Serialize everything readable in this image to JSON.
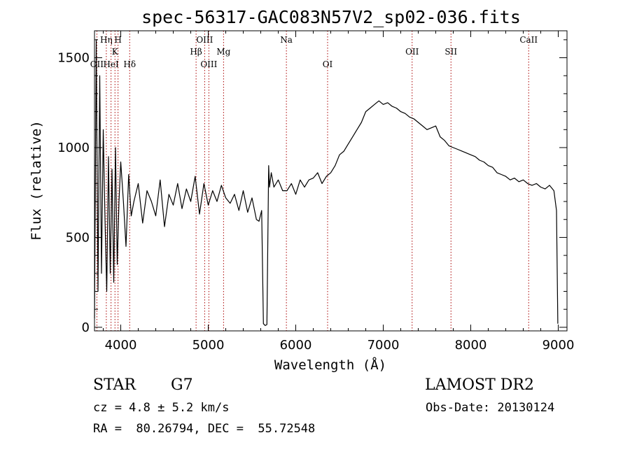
{
  "chart_data": {
    "type": "line",
    "title": "spec-56317-GAC083N57V2_sp02-036.fits",
    "xlabel": "Wavelength (Å)",
    "ylabel": "Flux (relative)",
    "xlim": [
      3700,
      9100
    ],
    "ylim": [
      -20,
      1650
    ],
    "xticks": [
      4000,
      5000,
      6000,
      7000,
      8000,
      9000
    ],
    "yticks": [
      0,
      500,
      1000,
      1500
    ],
    "grid": false,
    "line_color": "#000000",
    "marker_color": "#aa0000",
    "series": [
      {
        "x": [
          3700,
          3720,
          3740,
          3760,
          3780,
          3800,
          3820,
          3840,
          3860,
          3880,
          3900,
          3920,
          3940,
          3960,
          3980,
          4000,
          4030,
          4060,
          4090,
          4120,
          4150,
          4200,
          4250,
          4300,
          4350,
          4400,
          4450,
          4500,
          4550,
          4600,
          4650,
          4700,
          4750,
          4800,
          4850,
          4900,
          4950,
          5000,
          5050,
          5100,
          5150,
          5200,
          5250,
          5300,
          5350,
          5400,
          5450,
          5500,
          5550,
          5580,
          5610,
          5630,
          5650,
          5670,
          5690,
          5700,
          5720,
          5750,
          5800,
          5850,
          5900,
          5950,
          6000,
          6050,
          6100,
          6150,
          6200,
          6250,
          6300,
          6350,
          6400,
          6450,
          6500,
          6550,
          6600,
          6650,
          6700,
          6750,
          6800,
          6850,
          6900,
          6950,
          7000,
          7050,
          7100,
          7150,
          7200,
          7250,
          7300,
          7350,
          7400,
          7450,
          7500,
          7550,
          7600,
          7650,
          7700,
          7750,
          7800,
          7850,
          7900,
          7950,
          8000,
          8050,
          8100,
          8150,
          8200,
          8250,
          8300,
          8350,
          8400,
          8450,
          8500,
          8550,
          8600,
          8650,
          8700,
          8750,
          8800,
          8850,
          8900,
          8950,
          8980,
          8995
        ],
        "y": [
          50,
          1600,
          200,
          1400,
          300,
          1100,
          600,
          200,
          950,
          300,
          880,
          250,
          1000,
          350,
          700,
          920,
          700,
          450,
          850,
          620,
          700,
          800,
          580,
          760,
          700,
          620,
          820,
          560,
          740,
          680,
          800,
          660,
          770,
          700,
          840,
          630,
          800,
          680,
          760,
          700,
          790,
          720,
          690,
          740,
          650,
          760,
          640,
          720,
          600,
          590,
          650,
          20,
          10,
          15,
          900,
          780,
          860,
          780,
          820,
          760,
          760,
          800,
          740,
          820,
          780,
          820,
          830,
          860,
          800,
          840,
          860,
          900,
          960,
          980,
          1020,
          1060,
          1100,
          1140,
          1200,
          1220,
          1240,
          1260,
          1240,
          1250,
          1230,
          1220,
          1200,
          1190,
          1170,
          1160,
          1140,
          1120,
          1100,
          1110,
          1120,
          1060,
          1040,
          1010,
          1000,
          990,
          980,
          970,
          960,
          950,
          930,
          920,
          900,
          890,
          860,
          850,
          840,
          820,
          830,
          810,
          820,
          800,
          790,
          800,
          780,
          770,
          790,
          760,
          650,
          20
        ]
      }
    ],
    "line_markers": [
      {
        "label": "OII",
        "x": 3727,
        "row": 3
      },
      {
        "label": "Hη",
        "x": 3835,
        "row": 1
      },
      {
        "label": "HeI",
        "x": 3889,
        "row": 3
      },
      {
        "label": "K",
        "x": 3934,
        "row": 2
      },
      {
        "label": "H",
        "x": 3969,
        "row": 1
      },
      {
        "label": "Hδ",
        "x": 4102,
        "row": 3
      },
      {
        "label": "Hβ",
        "x": 4861,
        "row": 2
      },
      {
        "label": "OIII",
        "x": 4959,
        "row": 1
      },
      {
        "label": "OIII",
        "x": 5007,
        "row": 3
      },
      {
        "label": "Mg",
        "x": 5175,
        "row": 2
      },
      {
        "label": "Na",
        "x": 5893,
        "row": 1
      },
      {
        "label": "OI",
        "x": 6364,
        "row": 3
      },
      {
        "label": "OII",
        "x": 7330,
        "row": 2
      },
      {
        "label": "SII",
        "x": 7774,
        "row": 2
      },
      {
        "label": "CaII",
        "x": 8662,
        "row": 1
      }
    ]
  },
  "info": {
    "class": "STAR",
    "subclass": "G7",
    "survey": "LAMOST DR2",
    "cz": "cz = 4.8 ± 5.2 km/s",
    "obs_date": "Obs-Date: 20130124",
    "coords": "RA =  80.26794, DEC =  55.72548"
  }
}
